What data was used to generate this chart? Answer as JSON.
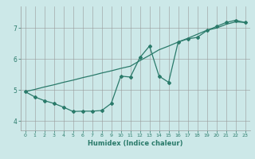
{
  "xlabel": "Humidex (Indice chaleur)",
  "ylabel": "",
  "background_color": "#cce8e8",
  "grid_color": "#999999",
  "line_color": "#2a7a6a",
  "xlim": [
    -0.5,
    23.5
  ],
  "ylim": [
    3.7,
    7.7
  ],
  "yticks": [
    4,
    5,
    6,
    7
  ],
  "xticks": [
    0,
    1,
    2,
    3,
    4,
    5,
    6,
    7,
    8,
    9,
    10,
    11,
    12,
    13,
    14,
    15,
    16,
    17,
    18,
    19,
    20,
    21,
    22,
    23
  ],
  "series1_x": [
    0,
    1,
    2,
    3,
    4,
    5,
    6,
    7,
    8,
    9,
    10,
    11,
    12,
    13,
    14,
    15,
    16,
    17,
    18,
    19,
    20,
    21,
    22,
    23
  ],
  "series1_y": [
    4.95,
    4.78,
    4.66,
    4.57,
    4.45,
    4.31,
    4.32,
    4.32,
    4.34,
    4.57,
    5.45,
    5.42,
    6.05,
    6.42,
    5.45,
    5.25,
    6.55,
    6.65,
    6.7,
    6.92,
    7.05,
    7.18,
    7.25,
    7.18
  ],
  "series2_x": [
    0,
    1,
    2,
    3,
    4,
    5,
    6,
    7,
    8,
    9,
    10,
    11,
    12,
    13,
    14,
    15,
    16,
    17,
    18,
    19,
    20,
    21,
    22,
    23
  ],
  "series2_y": [
    4.95,
    5.02,
    5.1,
    5.17,
    5.25,
    5.32,
    5.4,
    5.47,
    5.55,
    5.62,
    5.7,
    5.77,
    5.95,
    6.12,
    6.3,
    6.42,
    6.55,
    6.67,
    6.8,
    6.93,
    7.0,
    7.12,
    7.2,
    7.18
  ]
}
